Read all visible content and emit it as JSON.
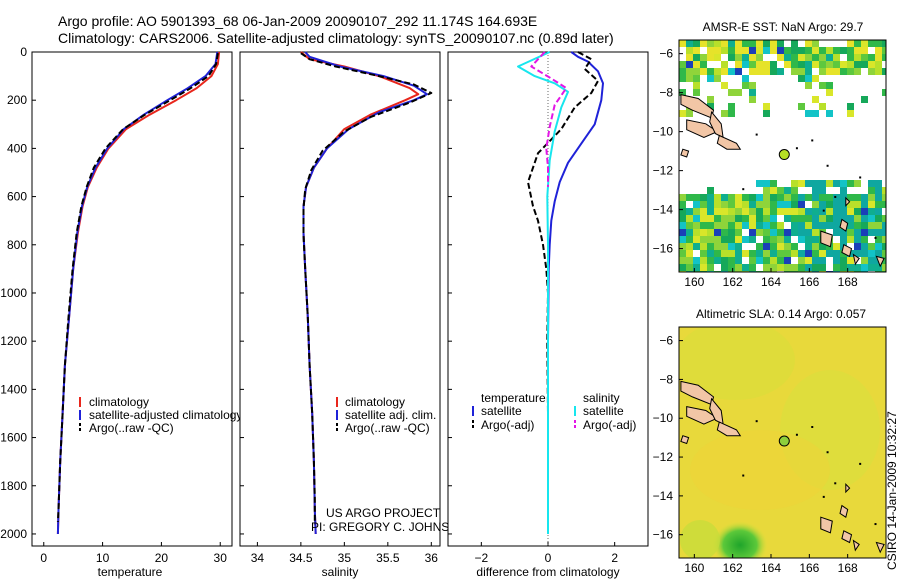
{
  "header": {
    "line1": "Argo profile: AO 5901393_68 06-Jan-2009 20090107_292 11.174S 164.693E",
    "line2": "Climatology: CARS2006. Satellite-adjusted climatology: synTS_20090107.nc (0.89d later)"
  },
  "colors": {
    "climatology": "#e8261c",
    "satellite": "#1f22d8",
    "argo": "#000000",
    "satellite_salinity": "#17e6ee",
    "argo_salinity": "#e316e6",
    "land": "#f2c6a6"
  },
  "credit": {
    "project": "US ARGO PROJECT",
    "pi": "PI: GREGORY C. JOHNSON"
  },
  "side_label": "CSIRO 14-Jan-2009 10:32:27",
  "chart_data": [
    {
      "id": "temperature",
      "type": "line",
      "xlabel": "temperature",
      "ylabel": "",
      "xlim": [
        -2,
        32
      ],
      "ylim": [
        2050,
        0
      ],
      "xticks": [
        0,
        10,
        20,
        30
      ],
      "yticks": [
        0,
        200,
        400,
        600,
        800,
        1000,
        1200,
        1400,
        1600,
        1800,
        2000
      ],
      "legend": [
        "climatology",
        "satellite-adjusted climatology",
        "Argo(..raw -QC)"
      ],
      "series": [
        {
          "name": "climatology",
          "color": "#e8261c",
          "dash": "",
          "points": [
            [
              29.8,
              0
            ],
            [
              29.6,
              50
            ],
            [
              28.5,
              100
            ],
            [
              26,
              150
            ],
            [
              22.5,
              200
            ],
            [
              18,
              260
            ],
            [
              14,
              320
            ],
            [
              11,
              400
            ],
            [
              9,
              480
            ],
            [
              7.5,
              560
            ],
            [
              6.6,
              640
            ],
            [
              5.8,
              750
            ],
            [
              5,
              900
            ],
            [
              4.3,
              1100
            ],
            [
              3.6,
              1300
            ],
            [
              3.2,
              1500
            ],
            [
              2.8,
              1700
            ],
            [
              2.5,
              1900
            ],
            [
              2.4,
              2000
            ]
          ]
        },
        {
          "name": "satellite-adjusted climatology",
          "color": "#1f22d8",
          "dash": "",
          "points": [
            [
              29.5,
              0
            ],
            [
              29.2,
              50
            ],
            [
              27.5,
              100
            ],
            [
              24.5,
              150
            ],
            [
              21,
              200
            ],
            [
              17,
              260
            ],
            [
              13.6,
              320
            ],
            [
              10.8,
              400
            ],
            [
              8.8,
              480
            ],
            [
              7.4,
              560
            ],
            [
              6.5,
              640
            ],
            [
              5.7,
              750
            ],
            [
              5,
              900
            ],
            [
              4.3,
              1100
            ],
            [
              3.6,
              1300
            ],
            [
              3.2,
              1500
            ],
            [
              2.8,
              1700
            ],
            [
              2.5,
              1900
            ],
            [
              2.4,
              2000
            ]
          ]
        },
        {
          "name": "Argo(..raw -QC)",
          "color": "#000000",
          "dash": "6,3",
          "points": [
            [
              29.6,
              5
            ],
            [
              29.3,
              50
            ],
            [
              28,
              100
            ],
            [
              25,
              150
            ],
            [
              21.5,
              200
            ],
            [
              17.2,
              260
            ],
            [
              13.5,
              320
            ],
            [
              10.5,
              400
            ],
            [
              8.5,
              480
            ],
            [
              7.3,
              560
            ],
            [
              6.4,
              640
            ],
            [
              5.6,
              750
            ],
            [
              4.9,
              900
            ],
            [
              4.2,
              1100
            ],
            [
              3.6,
              1300
            ],
            [
              3.2,
              1500
            ],
            [
              2.8,
              1700
            ],
            [
              2.5,
              1900
            ],
            [
              2.4,
              1950
            ]
          ]
        }
      ]
    },
    {
      "id": "salinity",
      "type": "line",
      "xlabel": "salinity",
      "ylabel": "",
      "xlim": [
        33.8,
        36.1
      ],
      "ylim": [
        2050,
        0
      ],
      "xticks": [
        34,
        34.5,
        35,
        35.5,
        36
      ],
      "yticks": [
        0,
        200,
        400,
        600,
        800,
        1000,
        1200,
        1400,
        1600,
        1800,
        2000
      ],
      "legend": [
        "climatology",
        "satellite adj. clim.",
        "Argo(..raw -QC)"
      ],
      "series": [
        {
          "name": "climatology",
          "color": "#e8261c",
          "dash": "",
          "points": [
            [
              34.5,
              0
            ],
            [
              34.6,
              30
            ],
            [
              35.0,
              60
            ],
            [
              35.4,
              100
            ],
            [
              35.75,
              150
            ],
            [
              35.85,
              175
            ],
            [
              35.7,
              200
            ],
            [
              35.3,
              260
            ],
            [
              35.0,
              320
            ],
            [
              34.8,
              400
            ],
            [
              34.65,
              480
            ],
            [
              34.56,
              560
            ],
            [
              34.53,
              640
            ],
            [
              34.53,
              750
            ],
            [
              34.55,
              900
            ],
            [
              34.58,
              1100
            ],
            [
              34.6,
              1300
            ],
            [
              34.63,
              1500
            ],
            [
              34.65,
              1700
            ],
            [
              34.66,
              1900
            ],
            [
              34.67,
              2000
            ]
          ]
        },
        {
          "name": "satellite adj. clim.",
          "color": "#1f22d8",
          "dash": "",
          "points": [
            [
              34.55,
              0
            ],
            [
              34.6,
              20
            ],
            [
              34.95,
              60
            ],
            [
              35.45,
              100
            ],
            [
              35.8,
              140
            ],
            [
              35.95,
              175
            ],
            [
              35.8,
              200
            ],
            [
              35.4,
              250
            ],
            [
              35.05,
              320
            ],
            [
              34.8,
              400
            ],
            [
              34.65,
              480
            ],
            [
              34.56,
              560
            ],
            [
              34.53,
              640
            ],
            [
              34.53,
              750
            ],
            [
              34.55,
              900
            ],
            [
              34.58,
              1100
            ],
            [
              34.6,
              1300
            ],
            [
              34.63,
              1500
            ],
            [
              34.65,
              1700
            ],
            [
              34.66,
              1900
            ],
            [
              34.67,
              2000
            ]
          ]
        },
        {
          "name": "Argo(..raw -QC)",
          "color": "#000000",
          "dash": "6,3",
          "points": [
            [
              34.5,
              5
            ],
            [
              34.6,
              30
            ],
            [
              34.9,
              60
            ],
            [
              35.4,
              100
            ],
            [
              35.8,
              135
            ],
            [
              36.0,
              170
            ],
            [
              35.75,
              210
            ],
            [
              35.3,
              270
            ],
            [
              35.0,
              330
            ],
            [
              34.75,
              410
            ],
            [
              34.62,
              490
            ],
            [
              34.55,
              570
            ],
            [
              34.53,
              650
            ],
            [
              34.53,
              760
            ],
            [
              34.55,
              900
            ],
            [
              34.58,
              1100
            ],
            [
              34.6,
              1300
            ],
            [
              34.63,
              1500
            ],
            [
              34.65,
              1700
            ],
            [
              34.66,
              1850
            ],
            [
              34.66,
              1960
            ]
          ]
        }
      ]
    },
    {
      "id": "difference",
      "type": "line",
      "xlabel": "difference from climatology",
      "ylabel": "",
      "xlim": [
        -3,
        3
      ],
      "ylim": [
        2050,
        0
      ],
      "xticks": [
        -2,
        0,
        2
      ],
      "yticks": [
        0,
        200,
        400,
        600,
        800,
        1000,
        1200,
        1400,
        1600,
        1800,
        2000
      ],
      "legend_left_title": "temperature",
      "legend_right_title": "salinity",
      "legend": [
        "satellite",
        "Argo(-adj)",
        "satellite",
        "Argo(-adj)"
      ],
      "series": [
        {
          "name": "satellite",
          "group": "temperature",
          "color": "#1f22d8",
          "dash": "",
          "points": [
            [
              0.7,
              0
            ],
            [
              0.9,
              20
            ],
            [
              1.2,
              40
            ],
            [
              1.5,
              80
            ],
            [
              1.65,
              130
            ],
            [
              1.6,
              200
            ],
            [
              1.4,
              300
            ],
            [
              1.0,
              380
            ],
            [
              0.6,
              460
            ],
            [
              0.35,
              540
            ],
            [
              0.2,
              620
            ],
            [
              0.1,
              700
            ],
            [
              0.05,
              800
            ],
            [
              0.02,
              900
            ],
            [
              0,
              1200
            ],
            [
              0,
              2000
            ]
          ]
        },
        {
          "name": "Argo(-adj)",
          "group": "temperature",
          "color": "#000000",
          "dash": "6,3",
          "points": [
            [
              0.9,
              0
            ],
            [
              1.3,
              30
            ],
            [
              1.1,
              70
            ],
            [
              1.5,
              120
            ],
            [
              1.3,
              170
            ],
            [
              0.8,
              230
            ],
            [
              0.4,
              320
            ],
            [
              -0.3,
              420
            ],
            [
              -0.6,
              540
            ],
            [
              -0.45,
              640
            ],
            [
              -0.3,
              700
            ],
            [
              -0.15,
              800
            ],
            [
              -0.05,
              900
            ],
            [
              0,
              1000
            ],
            [
              -0.02,
              1200
            ],
            [
              0,
              1500
            ],
            [
              0,
              1950
            ]
          ]
        },
        {
          "name": "satellite",
          "group": "salinity",
          "color": "#17e6ee",
          "dash": "",
          "points": [
            [
              0.05,
              0
            ],
            [
              -0.9,
              60
            ],
            [
              -0.4,
              100
            ],
            [
              0.2,
              130
            ],
            [
              0.6,
              165
            ],
            [
              0.4,
              230
            ],
            [
              0.2,
              330
            ],
            [
              0.05,
              450
            ],
            [
              -0.02,
              600
            ],
            [
              0,
              800
            ],
            [
              0,
              2000
            ]
          ]
        },
        {
          "name": "Argo(-adj)",
          "group": "salinity",
          "color": "#e316e6",
          "dash": "6,3",
          "points": [
            [
              -0.1,
              0
            ],
            [
              -0.5,
              60
            ],
            [
              0.1,
              110
            ],
            [
              0.55,
              150
            ],
            [
              0.2,
              220
            ],
            [
              0.05,
              310
            ],
            [
              -0.05,
              400
            ],
            [
              0,
              480
            ],
            [
              0,
              560
            ]
          ]
        }
      ]
    },
    {
      "id": "sst_map",
      "type": "heatmap",
      "title": "AMSR-E SST: NaN Argo: 29.7",
      "xlim": [
        159.2,
        170
      ],
      "ylim": [
        -17.2,
        -5.3
      ],
      "xticks": [
        160,
        162,
        164,
        166,
        168
      ],
      "yticks": [
        -6,
        -8,
        -10,
        -12,
        -14,
        -16
      ],
      "float_position": {
        "lon": 164.693,
        "lat": -11.174
      }
    },
    {
      "id": "sla_map",
      "type": "heatmap",
      "title": "Altimetric SLA: 0.14 Argo: 0.057",
      "xlim": [
        159.2,
        170
      ],
      "ylim": [
        -17.2,
        -5.3
      ],
      "xticks": [
        160,
        162,
        164,
        166,
        168
      ],
      "yticks": [
        -6,
        -8,
        -10,
        -12,
        -14,
        -16
      ],
      "float_position": {
        "lon": 164.693,
        "lat": -11.174
      }
    }
  ]
}
